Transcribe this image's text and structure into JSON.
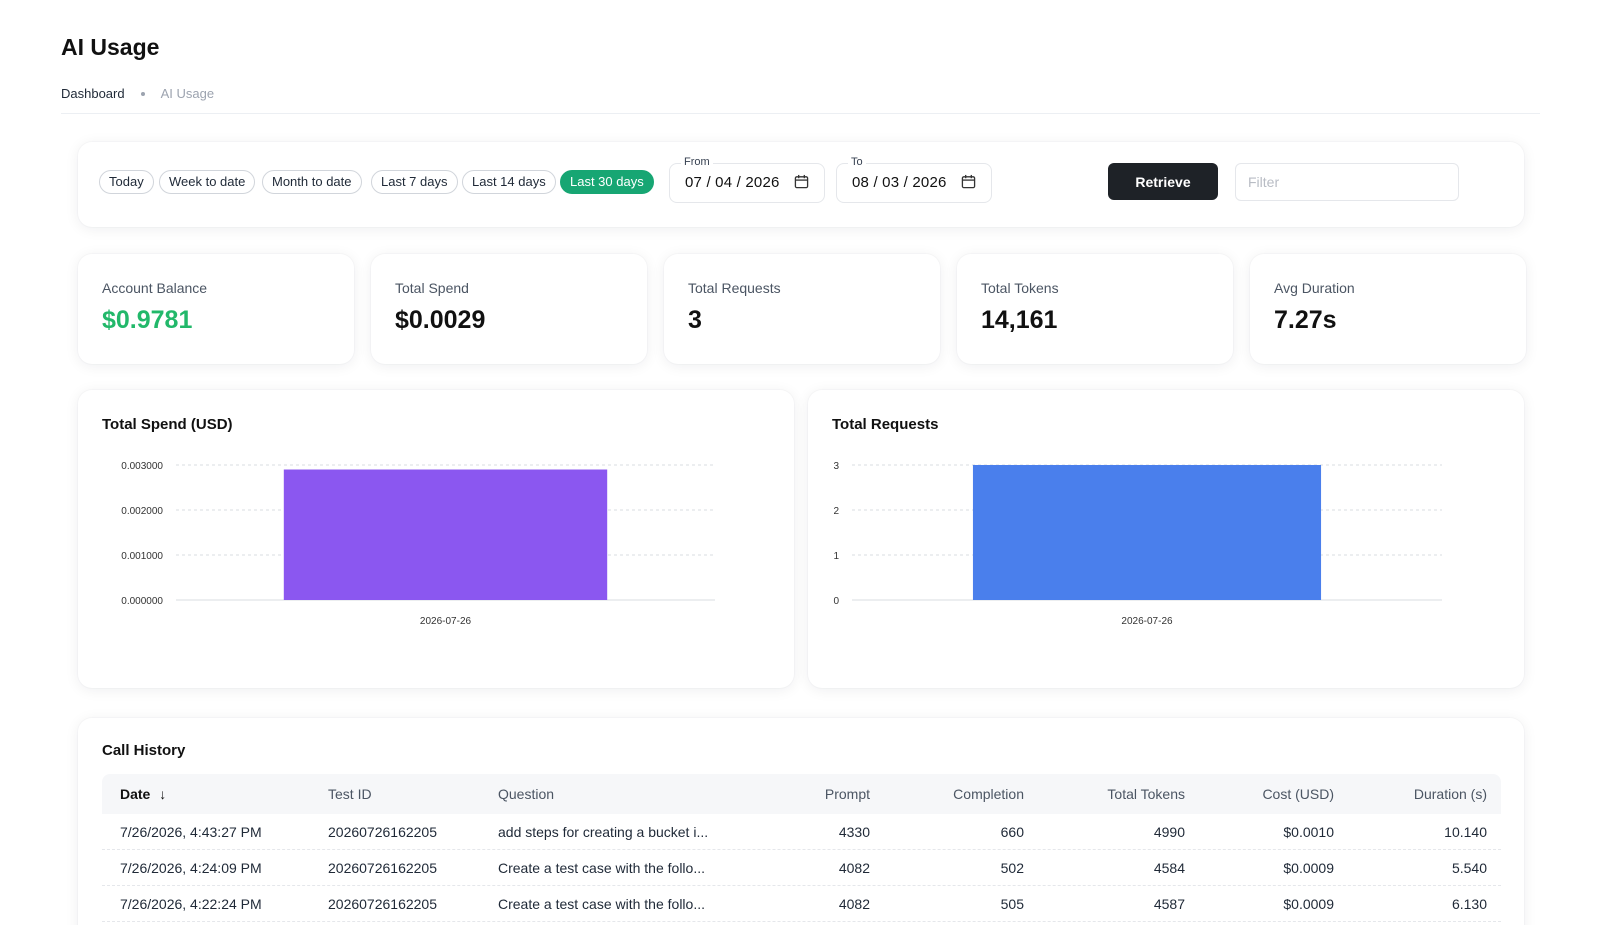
{
  "page": {
    "title": "AI Usage"
  },
  "breadcrumb": {
    "home": "Dashboard",
    "current": "AI Usage"
  },
  "filters": {
    "ranges": [
      "Today",
      "Week to date",
      "Month to date",
      "Last 7 days",
      "Last 14 days",
      "Last 30 days"
    ],
    "active_range": "Last 30 days",
    "from_label": "From",
    "from_value": "07 / 04 / 2026",
    "to_label": "To",
    "to_value": "08 / 03 / 2026",
    "retrieve_label": "Retrieve",
    "filter_placeholder": "Filter",
    "filter_value": ""
  },
  "stats": [
    {
      "label": "Account Balance",
      "value": "$0.9781",
      "color": "#22b86a"
    },
    {
      "label": "Total Spend",
      "value": "$0.0029"
    },
    {
      "label": "Total Requests",
      "value": "3"
    },
    {
      "label": "Total Tokens",
      "value": "14,161"
    },
    {
      "label": "Avg Duration",
      "value": "7.27s"
    }
  ],
  "chart_data": [
    {
      "type": "bar",
      "title": "Total Spend (USD)",
      "categories": [
        "2026-07-26"
      ],
      "values": [
        0.0029
      ],
      "yticks": [
        "0.000000",
        "0.001000",
        "0.002000",
        "0.003000"
      ],
      "ylim": [
        0,
        0.003
      ],
      "color": "#8b57f0",
      "grid": true,
      "xlabel": "",
      "ylabel": ""
    },
    {
      "type": "bar",
      "title": "Total Requests",
      "categories": [
        "2026-07-26"
      ],
      "values": [
        3
      ],
      "yticks": [
        "0",
        "1",
        "2",
        "3"
      ],
      "ylim": [
        0,
        3
      ],
      "color": "#4a7fec",
      "grid": true,
      "xlabel": "",
      "ylabel": ""
    }
  ],
  "history": {
    "title": "Call History",
    "sort_indicator": "↓",
    "columns": [
      "Date",
      "Test ID",
      "Question",
      "Prompt",
      "Completion",
      "Total Tokens",
      "Cost (USD)",
      "Duration (s)"
    ],
    "rows": [
      [
        "7/26/2026, 4:43:27 PM",
        "20260726162205",
        "add steps for creating a bucket i...",
        "4330",
        "660",
        "4990",
        "$0.0010",
        "10.140"
      ],
      [
        "7/26/2026, 4:24:09 PM",
        "20260726162205",
        "Create a test case with the follo...",
        "4082",
        "502",
        "4584",
        "$0.0009",
        "5.540"
      ],
      [
        "7/26/2026, 4:22:24 PM",
        "20260726162205",
        "Create a test case with the follo...",
        "4082",
        "505",
        "4587",
        "$0.0009",
        "6.130"
      ]
    ]
  },
  "icons": {
    "calendar": "calendar-icon",
    "sort": "sort-down-arrow-icon"
  },
  "colors": {
    "accent": "#17a673",
    "dark_button": "#1e2227",
    "balance": "#22b86a"
  }
}
